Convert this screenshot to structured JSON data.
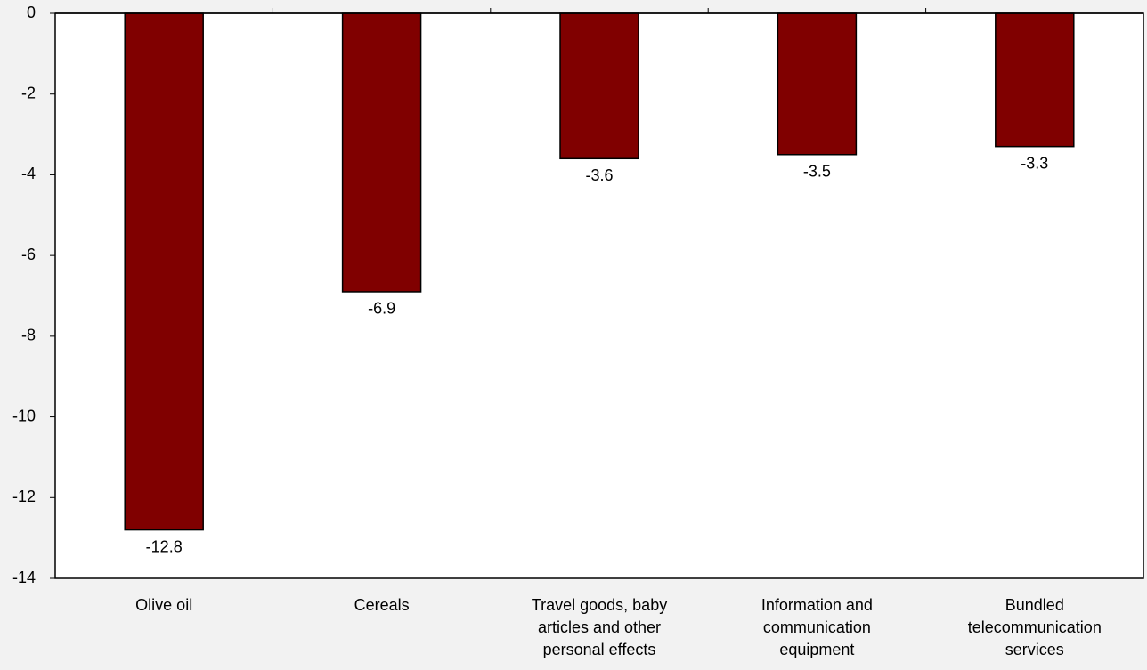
{
  "chart_data": {
    "type": "bar",
    "categories": [
      "Olive oil",
      "Cereals",
      "Travel goods, baby articles and other personal effects",
      "Information and communication equipment",
      "Bundled telecommunication services"
    ],
    "values": [
      -12.8,
      -6.9,
      -3.6,
      -3.5,
      -3.3
    ],
    "color": "#800000",
    "ylim": [
      -14,
      0
    ],
    "yticks": [
      0,
      -2,
      -4,
      -6,
      -8,
      -10,
      -12,
      -14
    ],
    "grid": false
  }
}
